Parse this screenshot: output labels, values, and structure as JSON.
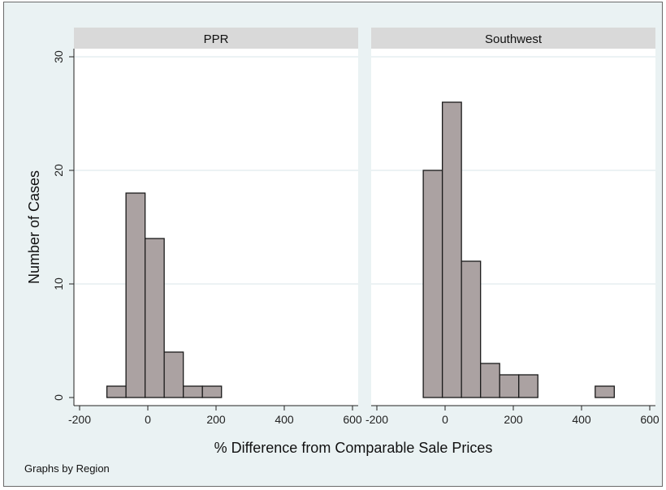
{
  "colors": {
    "background": "#eaf2f3",
    "plot_area": "#ffffff",
    "strip": "#d9d9d9",
    "bar_fill": "#aba2a2",
    "bar_stroke": "#1a1a1a",
    "grid": "#e6eef0"
  },
  "note": "Graphs by Region",
  "chart_data": {
    "type": "bar",
    "subtype": "histogram",
    "xlabel": "% Difference from Comparable Sale Prices",
    "ylabel": "Number of Cases",
    "xlim": [
      -200,
      600
    ],
    "ylim": [
      0,
      30
    ],
    "x_ticks": [
      -200,
      0,
      200,
      400,
      600
    ],
    "y_ticks": [
      0,
      10,
      20,
      30
    ],
    "grid": "horizontal",
    "panels": [
      {
        "name": "PPR",
        "bin_width": 56,
        "bins": [
          {
            "x0": -120,
            "x1": -64,
            "count": 1
          },
          {
            "x0": -64,
            "x1": -8,
            "count": 18
          },
          {
            "x0": -8,
            "x1": 48,
            "count": 14
          },
          {
            "x0": 48,
            "x1": 104,
            "count": 4
          },
          {
            "x0": 104,
            "x1": 160,
            "count": 1
          },
          {
            "x0": 160,
            "x1": 216,
            "count": 1
          }
        ]
      },
      {
        "name": "Southwest",
        "bin_width": 56,
        "bins": [
          {
            "x0": -64,
            "x1": -8,
            "count": 20
          },
          {
            "x0": -8,
            "x1": 48,
            "count": 26
          },
          {
            "x0": 48,
            "x1": 104,
            "count": 12
          },
          {
            "x0": 104,
            "x1": 160,
            "count": 3
          },
          {
            "x0": 160,
            "x1": 216,
            "count": 2
          },
          {
            "x0": 216,
            "x1": 272,
            "count": 2
          },
          {
            "x0": 440,
            "x1": 496,
            "count": 1
          }
        ]
      }
    ]
  }
}
